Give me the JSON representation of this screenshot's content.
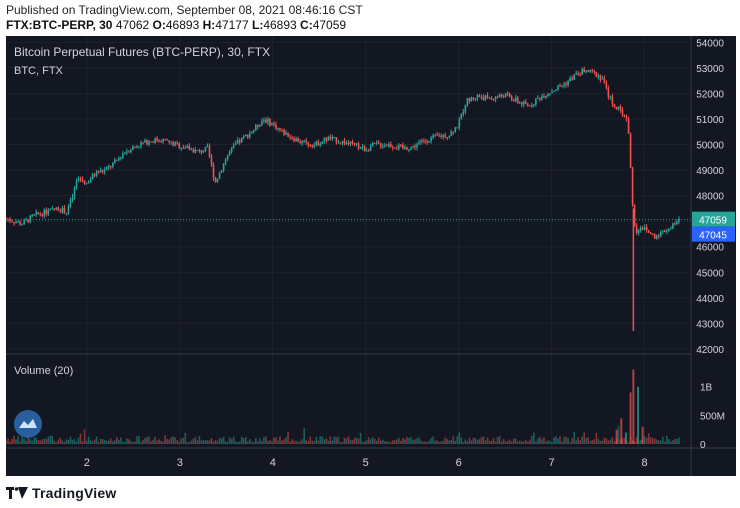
{
  "header": {
    "published": "Published on TradingView.com, September 08, 2021 08:46:16 CST",
    "symbol": "FTX:BTC-PERP, 30",
    "ohlc_first": "47062",
    "o_label": "O:",
    "o_value": "46893",
    "h_label": "H:",
    "h_value": "47177",
    "l_label": "L:",
    "l_value": "46893",
    "c_label": "C:",
    "c_value": "47059"
  },
  "chart_data": {
    "type": "candlestick",
    "title": "Bitcoin Perpetual Futures (BTC-PERP), 30, FTX",
    "subtitle": "BTC, FTX",
    "volume_label": "Volume (20)",
    "x_tick_labels": [
      "2",
      "3",
      "4",
      "5",
      "6",
      "7",
      "8"
    ],
    "x_tick_days": [
      2,
      3,
      4,
      5,
      6,
      7,
      8
    ],
    "x_range": [
      1.13,
      8.5
    ],
    "y_ticks": [
      42000,
      43000,
      44000,
      45000,
      46000,
      47000,
      48000,
      49000,
      50000,
      51000,
      52000,
      53000,
      54000
    ],
    "y_range": [
      41800,
      54250
    ],
    "volume_ticks": [
      {
        "label": "0",
        "value": 0
      },
      {
        "label": "500M",
        "value": 500000000
      },
      {
        "label": "1B",
        "value": 1000000000
      }
    ],
    "volume_range": [
      0,
      1500000000
    ],
    "last_price": 47059,
    "last_price_label": "47059",
    "second_price": 47045,
    "second_price_label": "47045",
    "price_path": [
      [
        1.13,
        47100
      ],
      [
        1.3,
        46900
      ],
      [
        1.45,
        47250
      ],
      [
        1.6,
        47400
      ],
      [
        1.7,
        47500
      ],
      [
        1.78,
        47350
      ],
      [
        1.85,
        48000
      ],
      [
        1.9,
        48700
      ],
      [
        2.0,
        48500
      ],
      [
        2.1,
        48900
      ],
      [
        2.2,
        49000
      ],
      [
        2.3,
        49300
      ],
      [
        2.4,
        49700
      ],
      [
        2.55,
        50000
      ],
      [
        2.7,
        50150
      ],
      [
        2.8,
        50200
      ],
      [
        2.95,
        50000
      ],
      [
        3.05,
        49900
      ],
      [
        3.2,
        49700
      ],
      [
        3.3,
        49850
      ],
      [
        3.38,
        48500
      ],
      [
        3.5,
        49500
      ],
      [
        3.6,
        50000
      ],
      [
        3.7,
        50300
      ],
      [
        3.8,
        50600
      ],
      [
        3.9,
        51000
      ],
      [
        4.0,
        50800
      ],
      [
        4.1,
        50500
      ],
      [
        4.2,
        50300
      ],
      [
        4.3,
        50100
      ],
      [
        4.45,
        50000
      ],
      [
        4.6,
        50250
      ],
      [
        4.75,
        50100
      ],
      [
        4.9,
        49950
      ],
      [
        5.0,
        49800
      ],
      [
        5.1,
        50000
      ],
      [
        5.25,
        50000
      ],
      [
        5.4,
        49850
      ],
      [
        5.5,
        49900
      ],
      [
        5.6,
        50100
      ],
      [
        5.75,
        50300
      ],
      [
        5.9,
        50400
      ],
      [
        6.0,
        50800
      ],
      [
        6.08,
        51700
      ],
      [
        6.2,
        51900
      ],
      [
        6.35,
        51800
      ],
      [
        6.5,
        51950
      ],
      [
        6.6,
        51750
      ],
      [
        6.75,
        51500
      ],
      [
        6.85,
        51800
      ],
      [
        6.95,
        52000
      ],
      [
        7.05,
        52200
      ],
      [
        7.15,
        52400
      ],
      [
        7.25,
        52700
      ],
      [
        7.35,
        52900
      ],
      [
        7.45,
        52800
      ],
      [
        7.55,
        52600
      ],
      [
        7.6,
        52000
      ],
      [
        7.68,
        51500
      ],
      [
        7.75,
        51300
      ],
      [
        7.82,
        50900
      ],
      [
        7.87,
        47800
      ],
      [
        7.9,
        46500
      ],
      [
        7.95,
        46800
      ],
      [
        8.0,
        46700
      ],
      [
        8.1,
        46400
      ],
      [
        8.2,
        46600
      ],
      [
        8.3,
        46800
      ],
      [
        8.38,
        47059
      ]
    ],
    "crash_low": {
      "x": 7.88,
      "value": 42700
    },
    "volume_spikes": [
      {
        "x": 7.7,
        "value": 250000000,
        "dir": "down"
      },
      {
        "x": 7.75,
        "value": 450000000,
        "dir": "down"
      },
      {
        "x": 7.8,
        "value": 200000000,
        "dir": "up"
      },
      {
        "x": 7.85,
        "value": 900000000,
        "dir": "down"
      },
      {
        "x": 7.88,
        "value": 1300000000,
        "dir": "down"
      },
      {
        "x": 7.93,
        "value": 1000000000,
        "dir": "up"
      },
      {
        "x": 7.98,
        "value": 300000000,
        "dir": "down"
      }
    ],
    "colors": {
      "background": "#131722",
      "grid": "#1e222d",
      "up": "#26a69a",
      "down": "#ef5350",
      "text": "#d1d4dc",
      "last_price": "#26a69a",
      "second_price": "#2962ff"
    }
  },
  "footer": {
    "brand": "TradingView"
  }
}
